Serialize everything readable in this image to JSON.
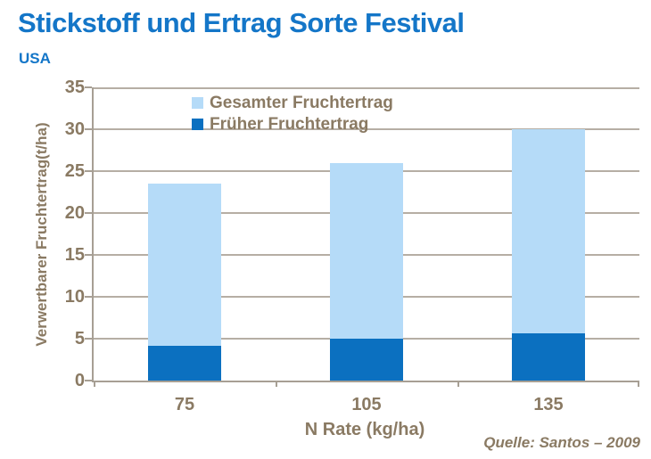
{
  "header": {
    "title": "Stickstoff und Ertrag Sorte Festival",
    "subtitle": "USA"
  },
  "source": "Quelle: Santos – 2009",
  "colors": {
    "title_blue": "#1476C8",
    "bar_light": "#B5DBF8",
    "bar_dark": "#0B70C0",
    "axis_text": "#8A7A63",
    "gridline": "#B6AEA4"
  },
  "chart_data": {
    "type": "bar",
    "title": "Stickstoff und Ertrag Sorte Festival",
    "subtitle": "USA",
    "categories": [
      "75",
      "105",
      "135"
    ],
    "series": [
      {
        "name": "Gesamter Fruchtertrag",
        "color": "#B5DBF8",
        "values": [
          23.5,
          26,
          30
        ]
      },
      {
        "name": "Früher Fruchtertrag",
        "color": "#0B70C0",
        "values": [
          4.2,
          5,
          5.6
        ]
      }
    ],
    "stack_style": "overlay-total-with-early-portion",
    "xlabel": "N Rate (kg/ha)",
    "ylabel": "Verwertbarer Fruchtertrag(t/ha)",
    "ylim": [
      0,
      35
    ],
    "yticks": [
      0,
      5,
      10,
      15,
      20,
      25,
      30,
      35
    ],
    "grid": true,
    "legend_position": "top-inside"
  }
}
